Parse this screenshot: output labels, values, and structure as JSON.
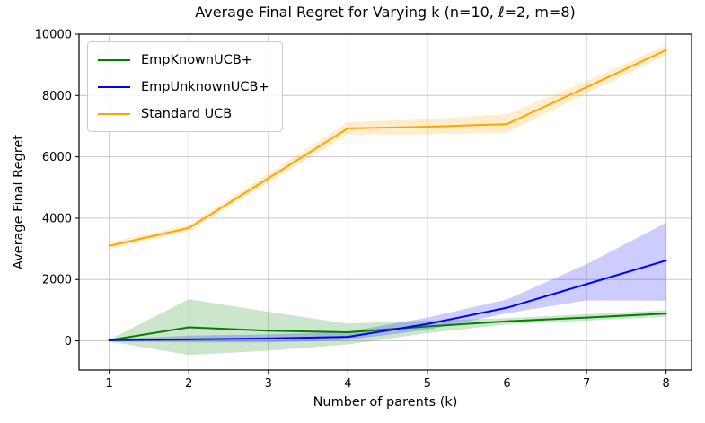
{
  "chart_data": {
    "type": "line",
    "title": "Average Final Regret for Varying k (n=10, ℓ=2, m=8)",
    "xlabel": "Number of parents (k)",
    "ylabel": "Average Final Regret",
    "x": [
      1,
      2,
      3,
      4,
      5,
      6,
      7,
      8
    ],
    "xticks": [
      1,
      2,
      3,
      4,
      5,
      6,
      7,
      8
    ],
    "xtick_labels": [
      "1",
      "2",
      "3",
      "4",
      "5",
      "6",
      "7",
      "8"
    ],
    "yticks": [
      0,
      2000,
      4000,
      6000,
      8000,
      10000
    ],
    "ytick_labels": [
      "0",
      "2000",
      "4000",
      "6000",
      "8000",
      "10000"
    ],
    "xlim": [
      0.62,
      8.32
    ],
    "ylim": [
      -950,
      10000
    ],
    "grid": true,
    "grid_color": "#c9c9c9",
    "axis_color": "#000000",
    "background_color": "#ffffff",
    "legend_position": "upper left",
    "band_alpha": 0.2,
    "series": [
      {
        "name": "EmpKnownUCB+",
        "color": "#008000",
        "values": [
          20,
          440,
          330,
          280,
          470,
          640,
          760,
          890
        ],
        "band_upper": [
          40,
          1360,
          950,
          560,
          660,
          740,
          870,
          1000
        ],
        "band_lower": [
          -20,
          -460,
          -320,
          -120,
          250,
          540,
          660,
          790
        ]
      },
      {
        "name": "EmpUnknownUCB+",
        "color": "#0000ff",
        "values": [
          20,
          50,
          80,
          130,
          550,
          1080,
          1850,
          2620
        ],
        "band_upper": [
          50,
          170,
          210,
          300,
          760,
          1350,
          2500,
          3850
        ],
        "band_lower": [
          -20,
          -50,
          -50,
          30,
          360,
          900,
          1320,
          1310
        ]
      },
      {
        "name": "Standard UCB",
        "color": "#ffa500",
        "values": [
          3100,
          3680,
          5300,
          6930,
          6980,
          7070,
          8270,
          9480
        ],
        "band_upper": [
          3210,
          3780,
          5450,
          7130,
          7230,
          7390,
          8470,
          9640
        ],
        "band_lower": [
          2990,
          3580,
          5150,
          6730,
          6730,
          6790,
          8070,
          9320
        ]
      }
    ]
  }
}
